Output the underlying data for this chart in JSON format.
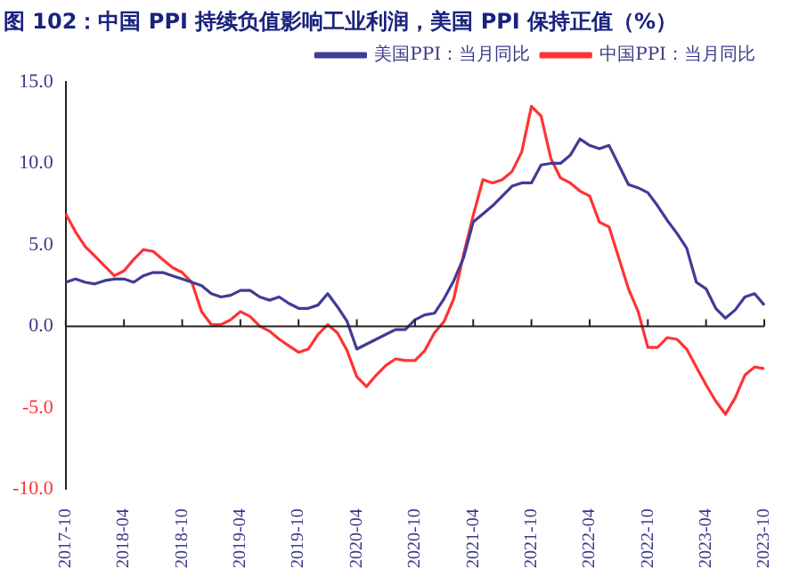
{
  "chart_data": {
    "type": "line",
    "title": "图 102：中国 PPI 持续负值影响工业利润，美国 PPI 保持正值（%）",
    "categories": [
      "2017-10",
      null,
      null,
      null,
      null,
      null,
      "2018-04",
      null,
      null,
      null,
      null,
      null,
      "2018-10",
      null,
      null,
      null,
      null,
      null,
      "2019-04",
      null,
      null,
      null,
      null,
      null,
      "2019-10",
      null,
      null,
      null,
      null,
      null,
      "2020-04",
      null,
      null,
      null,
      null,
      null,
      "2020-10",
      null,
      null,
      null,
      null,
      null,
      "2021-04",
      null,
      null,
      null,
      null,
      null,
      "2021-10",
      null,
      null,
      null,
      null,
      null,
      "2022-04",
      null,
      null,
      null,
      null,
      null,
      "2022-10",
      null,
      null,
      null,
      null,
      null,
      "2023-04",
      null,
      null,
      null,
      null,
      null,
      "2023-10"
    ],
    "series": [
      {
        "name": "美国PPI：当月同比",
        "color": "#403c96",
        "values": [
          2.7,
          2.9,
          2.7,
          2.6,
          2.8,
          2.9,
          2.9,
          2.7,
          3.1,
          3.3,
          3.3,
          3.1,
          2.9,
          2.7,
          2.5,
          2.0,
          1.8,
          1.9,
          2.2,
          2.2,
          1.8,
          1.6,
          1.8,
          1.4,
          1.1,
          1.1,
          1.3,
          2.0,
          1.2,
          0.3,
          -1.4,
          -1.1,
          -0.8,
          -0.5,
          -0.2,
          -0.2,
          0.4,
          0.7,
          0.8,
          1.7,
          2.8,
          4.2,
          6.4,
          6.9,
          7.4,
          8.0,
          8.6,
          8.8,
          8.8,
          9.9,
          10.0,
          10.0,
          10.5,
          11.5,
          11.1,
          10.9,
          11.1,
          9.9,
          8.7,
          8.5,
          8.2,
          7.4,
          6.5,
          5.7,
          4.8,
          2.7,
          2.3,
          1.1,
          0.5,
          1.0,
          1.8,
          2.0,
          1.3
        ]
      },
      {
        "name": "中国PPI：当月同比",
        "color": "#ff3333",
        "values": [
          6.9,
          5.8,
          4.9,
          4.3,
          3.7,
          3.1,
          3.4,
          4.1,
          4.7,
          4.6,
          4.1,
          3.6,
          3.3,
          2.7,
          0.9,
          0.1,
          0.1,
          0.4,
          0.9,
          0.6,
          0.0,
          -0.3,
          -0.8,
          -1.2,
          -1.6,
          -1.4,
          -0.5,
          0.1,
          -0.4,
          -1.5,
          -3.1,
          -3.7,
          -3.0,
          -2.4,
          -2.0,
          -2.1,
          -2.1,
          -1.5,
          -0.4,
          0.3,
          1.7,
          4.4,
          6.8,
          9.0,
          8.8,
          9.0,
          9.5,
          10.7,
          13.5,
          12.9,
          10.3,
          9.1,
          8.8,
          8.3,
          8.0,
          6.4,
          6.1,
          4.2,
          2.3,
          0.9,
          -1.3,
          -1.3,
          -0.7,
          -0.8,
          -1.4,
          -2.5,
          -3.6,
          -4.6,
          -5.4,
          -4.4,
          -3.0,
          -2.5,
          -2.6
        ]
      }
    ],
    "ylim": [
      -10,
      15
    ],
    "yticks": [
      {
        "value": -10,
        "label": "-10.0"
      },
      {
        "value": -5,
        "label": "-5.0"
      },
      {
        "value": 0,
        "label": "0.0"
      },
      {
        "value": 5,
        "label": "5.0"
      },
      {
        "value": 10,
        "label": "10.0"
      },
      {
        "value": 15,
        "label": "15.0"
      }
    ],
    "legend": "top"
  }
}
